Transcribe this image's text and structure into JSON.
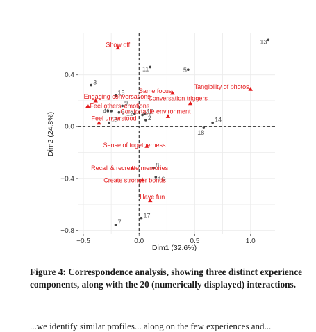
{
  "chart_data": {
    "type": "scatter",
    "xlabel": "Dim1 (32.6%)",
    "ylabel": "Dim2 (24.8%)",
    "xlim": [
      -0.55,
      1.22
    ],
    "ylim": [
      -0.83,
      0.72
    ],
    "xticks": [
      -0.5,
      0.0,
      0.5,
      1.0
    ],
    "xtick_labels": [
      "−0.5",
      "0.0",
      "0.5",
      "1.0"
    ],
    "yticks": [
      -0.8,
      -0.4,
      0.0,
      0.4
    ],
    "ytick_labels": [
      "−0.8",
      "−0.4",
      "0.0",
      "0.4"
    ],
    "grid": true,
    "reference_lines": [
      "x=0",
      "y=0"
    ],
    "series": [
      {
        "color": "#444444",
        "marker": "dot",
        "points": [
          {
            "label": "1",
            "x": -0.25,
            "y": 0.12
          },
          {
            "label": "2",
            "x": 0.06,
            "y": 0.05
          },
          {
            "label": "3",
            "x": -0.43,
            "y": 0.32
          },
          {
            "label": "4",
            "x": -0.28,
            "y": 0.12
          },
          {
            "label": "5",
            "x": 0.44,
            "y": 0.44
          },
          {
            "label": "6",
            "x": -0.18,
            "y": 0.11
          },
          {
            "label": "7",
            "x": -0.21,
            "y": -0.76
          },
          {
            "label": "8",
            "x": 0.13,
            "y": -0.32
          },
          {
            "label": "9",
            "x": -0.15,
            "y": 0.16
          },
          {
            "label": "10",
            "x": 0.05,
            "y": 0.1
          },
          {
            "label": "11",
            "x": 0.1,
            "y": 0.46
          },
          {
            "label": "12",
            "x": -0.04,
            "y": 0.1
          },
          {
            "label": "13",
            "x": 1.16,
            "y": 0.67
          },
          {
            "label": "14",
            "x": 0.66,
            "y": 0.03
          },
          {
            "label": "15",
            "x": -0.21,
            "y": 0.24
          },
          {
            "label": "16",
            "x": 0.15,
            "y": -0.39
          },
          {
            "label": "17",
            "x": 0.02,
            "y": -0.71
          },
          {
            "label": "18",
            "x": 0.58,
            "y": -0.01
          },
          {
            "label": "19",
            "x": -0.27,
            "y": 0.03
          },
          {
            "label": "20",
            "x": 0.03,
            "y": 0.09
          }
        ]
      },
      {
        "color": "#e41a1c",
        "marker": "triangle",
        "points": [
          {
            "label": "Show off",
            "x": -0.19,
            "y": 0.61
          },
          {
            "label": "Same focus",
            "x": 0.3,
            "y": 0.26
          },
          {
            "label": "Tangibility of photos",
            "x": 1.0,
            "y": 0.29
          },
          {
            "label": "Engaging conversations",
            "x": -0.39,
            "y": 0.2
          },
          {
            "label": "Conversation triggers",
            "x": 0.46,
            "y": 0.18
          },
          {
            "label": "Feel others' emotions",
            "x": -0.46,
            "y": 0.16
          },
          {
            "label": "Comfortable environment",
            "x": 0.26,
            "y": 0.08
          },
          {
            "label": "Feel understood",
            "x": -0.36,
            "y": 0.03
          },
          {
            "label": "Sense of togetherness",
            "x": 0.07,
            "y": -0.15
          },
          {
            "label": "Recall & recreate memories",
            "x": -0.06,
            "y": -0.32
          },
          {
            "label": "Create stronger bonds",
            "x": 0.03,
            "y": -0.41
          },
          {
            "label": "Have fun",
            "x": 0.1,
            "y": -0.57
          }
        ]
      }
    ]
  },
  "caption": "Figure 4: Correspondence analysis, showing three distinct experience components, along with the 20 (numerically displayed) interactions.",
  "trailing_text": "...we identify similar profiles... along on the few experiences and..."
}
